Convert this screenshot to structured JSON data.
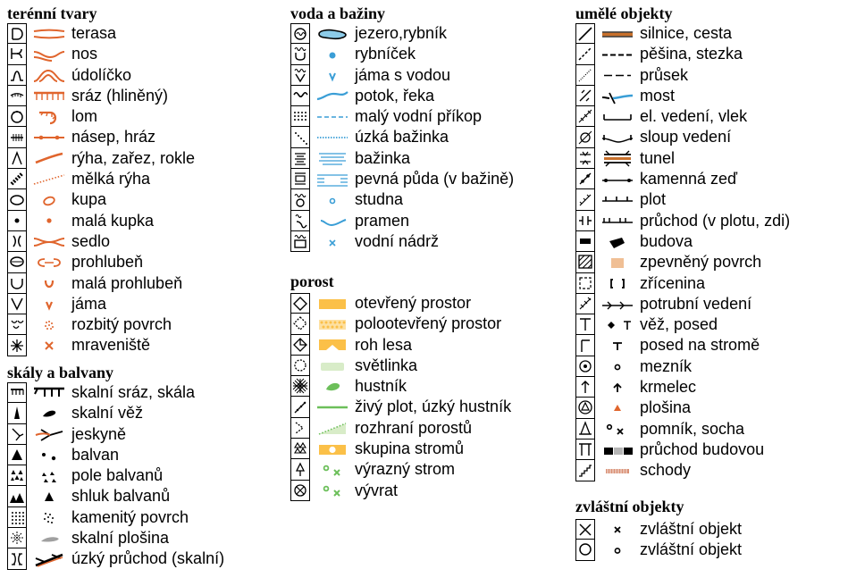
{
  "colors": {
    "brown": "#e0652d",
    "blue": "#3a9ed6",
    "light_blue": "#8ccbe8",
    "yellow": "#fbc048",
    "green": "#6cbf5a",
    "light_green": "#d8ecc8",
    "black": "#000000",
    "tan": "#f0bf95",
    "gray": "#a0a0a0"
  },
  "sections": {
    "terrain": {
      "title": "terénní tvary",
      "items": [
        {
          "label": "terasa",
          "icon": "terrace-icon",
          "symbol": "terrace-symbol"
        },
        {
          "label": "nos",
          "icon": "spur-icon",
          "symbol": "spur-symbol"
        },
        {
          "label": "údolíčko",
          "icon": "reentrant-icon",
          "symbol": "reentrant-symbol"
        },
        {
          "label": "sráz (hliněný)",
          "icon": "earth-bank-icon",
          "symbol": "earth-bank-symbol"
        },
        {
          "label": "lom",
          "icon": "quarry-icon",
          "symbol": "quarry-symbol"
        },
        {
          "label": "násep, hráz",
          "icon": "embankment-icon",
          "symbol": "embankment-symbol"
        },
        {
          "label": "rýha, zařez, rokle",
          "icon": "gully-icon",
          "symbol": "gully-symbol"
        },
        {
          "label": "mělká rýha",
          "icon": "shallow-gully-icon",
          "symbol": "shallow-gully-symbol"
        },
        {
          "label": "kupa",
          "icon": "knoll-icon",
          "symbol": "knoll-symbol"
        },
        {
          "label": "malá kupka",
          "icon": "small-knoll-icon",
          "symbol": "small-knoll-symbol"
        },
        {
          "label": "sedlo",
          "icon": "saddle-icon",
          "symbol": "saddle-symbol"
        },
        {
          "label": "prohlubeň",
          "icon": "depression-icon",
          "symbol": "depression-symbol"
        },
        {
          "label": "malá prohlubeň",
          "icon": "small-depression-icon",
          "symbol": "small-depression-symbol"
        },
        {
          "label": "jáma",
          "icon": "pit-icon",
          "symbol": "pit-symbol"
        },
        {
          "label": "rozbitý povrch",
          "icon": "broken-ground-icon",
          "symbol": "broken-ground-symbol"
        },
        {
          "label": "mraveniště",
          "icon": "anthill-icon",
          "symbol": "anthill-symbol"
        }
      ]
    },
    "rocks": {
      "title": "skály a balvany",
      "items": [
        {
          "label": "skalní sráz, skála",
          "icon": "cliff-icon",
          "symbol": "cliff-symbol"
        },
        {
          "label": "skalní věž",
          "icon": "rock-pillar-icon",
          "symbol": "rock-pillar-symbol"
        },
        {
          "label": "jeskyně",
          "icon": "cave-icon",
          "symbol": "cave-symbol"
        },
        {
          "label": "balvan",
          "icon": "boulder-icon",
          "symbol": "boulder-symbol"
        },
        {
          "label": "pole balvanů",
          "icon": "boulder-field-icon",
          "symbol": "boulder-field-symbol"
        },
        {
          "label": "shluk balvanů",
          "icon": "boulder-cluster-icon",
          "symbol": "boulder-cluster-symbol"
        },
        {
          "label": "kamenitý povrch",
          "icon": "stony-ground-icon",
          "symbol": "stony-ground-symbol"
        },
        {
          "label": "skalní plošina",
          "icon": "open-sandy-ground-icon",
          "symbol": "rock-plateau-symbol"
        },
        {
          "label": "úzký průchod (skalní)",
          "icon": "narrow-passage-icon",
          "symbol": "narrow-passage-symbol"
        }
      ]
    },
    "water": {
      "title": "voda a bažiny",
      "items": [
        {
          "label": "jezero,rybník",
          "icon": "lake-icon",
          "symbol": "lake-symbol"
        },
        {
          "label": "rybníček",
          "icon": "pond-icon",
          "symbol": "pond-symbol"
        },
        {
          "label": "jáma s vodou",
          "icon": "water-pit-icon",
          "symbol": "water-pit-symbol"
        },
        {
          "label": "potok, řeka",
          "icon": "stream-icon",
          "symbol": "stream-symbol"
        },
        {
          "label": "malý vodní příkop",
          "icon": "ditch-icon",
          "symbol": "ditch-symbol"
        },
        {
          "label": "úzká bažinka",
          "icon": "narrow-marsh-icon",
          "symbol": "narrow-marsh-symbol"
        },
        {
          "label": "bažinka",
          "icon": "marsh-icon",
          "symbol": "marsh-symbol"
        },
        {
          "label": "pevná půda (v bažině)",
          "icon": "firm-ground-icon",
          "symbol": "firm-ground-symbol"
        },
        {
          "label": "studna",
          "icon": "well-icon",
          "symbol": "well-symbol"
        },
        {
          "label": "pramen",
          "icon": "spring-icon",
          "symbol": "spring-symbol"
        },
        {
          "label": "vodní nádrž",
          "icon": "water-tank-icon",
          "symbol": "water-tank-symbol"
        }
      ]
    },
    "vegetation": {
      "title": "porost",
      "items": [
        {
          "label": "otevřený prostor",
          "icon": "open-land-icon",
          "symbol": "open-land-symbol"
        },
        {
          "label": "polootevřený prostor",
          "icon": "semi-open-land-icon",
          "symbol": "semi-open-land-symbol"
        },
        {
          "label": "roh lesa",
          "icon": "forest-corner-icon",
          "symbol": "forest-corner-symbol"
        },
        {
          "label": "světlinka",
          "icon": "clearing-icon",
          "symbol": "clearing-symbol"
        },
        {
          "label": "hustník",
          "icon": "thicket-icon",
          "symbol": "thicket-symbol"
        },
        {
          "label": "živý plot, úzký hustník",
          "icon": "hedge-icon",
          "symbol": "hedge-symbol"
        },
        {
          "label": "rozhraní porostů",
          "icon": "vegetation-boundary-icon",
          "symbol": "vegetation-boundary-symbol"
        },
        {
          "label": "skupina stromů",
          "icon": "tree-group-icon",
          "symbol": "tree-group-symbol"
        },
        {
          "label": "výrazný strom",
          "icon": "distinct-tree-icon",
          "symbol": "distinct-tree-symbol"
        },
        {
          "label": "vývrat",
          "icon": "root-stock-icon",
          "symbol": "root-stock-symbol"
        }
      ]
    },
    "manmade": {
      "title": "umělé objekty",
      "items": [
        {
          "label": "silnice, cesta",
          "icon": "road-icon",
          "symbol": "road-symbol"
        },
        {
          "label": "pěšina, stezka",
          "icon": "path-icon",
          "symbol": "path-symbol"
        },
        {
          "label": "průsek",
          "icon": "ride-icon",
          "symbol": "ride-symbol"
        },
        {
          "label": "most",
          "icon": "bridge-icon",
          "symbol": "bridge-symbol"
        },
        {
          "label": "el. vedení, vlek",
          "icon": "power-line-icon",
          "symbol": "power-line-symbol"
        },
        {
          "label": "sloup vedení",
          "icon": "pylon-icon",
          "symbol": "pylon-symbol"
        },
        {
          "label": "tunel",
          "icon": "tunnel-icon",
          "symbol": "tunnel-symbol"
        },
        {
          "label": "kamenná zeď",
          "icon": "stone-wall-icon",
          "symbol": "stone-wall-symbol"
        },
        {
          "label": "plot",
          "icon": "fence-icon",
          "symbol": "fence-symbol"
        },
        {
          "label": "průchod (v plotu, zdi)",
          "icon": "crossing-point-icon",
          "symbol": "crossing-point-symbol"
        },
        {
          "label": "budova",
          "icon": "building-icon",
          "symbol": "building-symbol"
        },
        {
          "label": "zpevněný povrch",
          "icon": "paved-area-icon",
          "symbol": "paved-area-symbol"
        },
        {
          "label": "zřícenina",
          "icon": "ruin-icon",
          "symbol": "ruin-symbol"
        },
        {
          "label": "potrubní vedení",
          "icon": "pipeline-icon",
          "symbol": "pipeline-symbol"
        },
        {
          "label": "věž, posed",
          "icon": "tower-icon",
          "symbol": "tower-symbol"
        },
        {
          "label": "posed na stromě",
          "icon": "shooting-platform-icon",
          "symbol": "shooting-platform-symbol"
        },
        {
          "label": "mezník",
          "icon": "boundary-stone-icon",
          "symbol": "boundary-stone-symbol"
        },
        {
          "label": "krmelec",
          "icon": "fodder-rack-icon",
          "symbol": "fodder-rack-symbol"
        },
        {
          "label": "plošina",
          "icon": "platform-icon",
          "symbol": "platform-symbol"
        },
        {
          "label": "pomník, socha",
          "icon": "monument-icon",
          "symbol": "monument-symbol"
        },
        {
          "label": "průchod budovou",
          "icon": "building-passage-icon",
          "symbol": "building-passage-symbol"
        },
        {
          "label": "schody",
          "icon": "stairway-icon",
          "symbol": "stairway-symbol"
        }
      ]
    },
    "special": {
      "title": "zvláštní objekty",
      "items": [
        {
          "label": "zvláštní objekt",
          "icon": "special-x-icon",
          "symbol": "special-x-symbol"
        },
        {
          "label": "zvláštní objekt",
          "icon": "special-o-icon",
          "symbol": "special-o-symbol"
        }
      ]
    }
  }
}
